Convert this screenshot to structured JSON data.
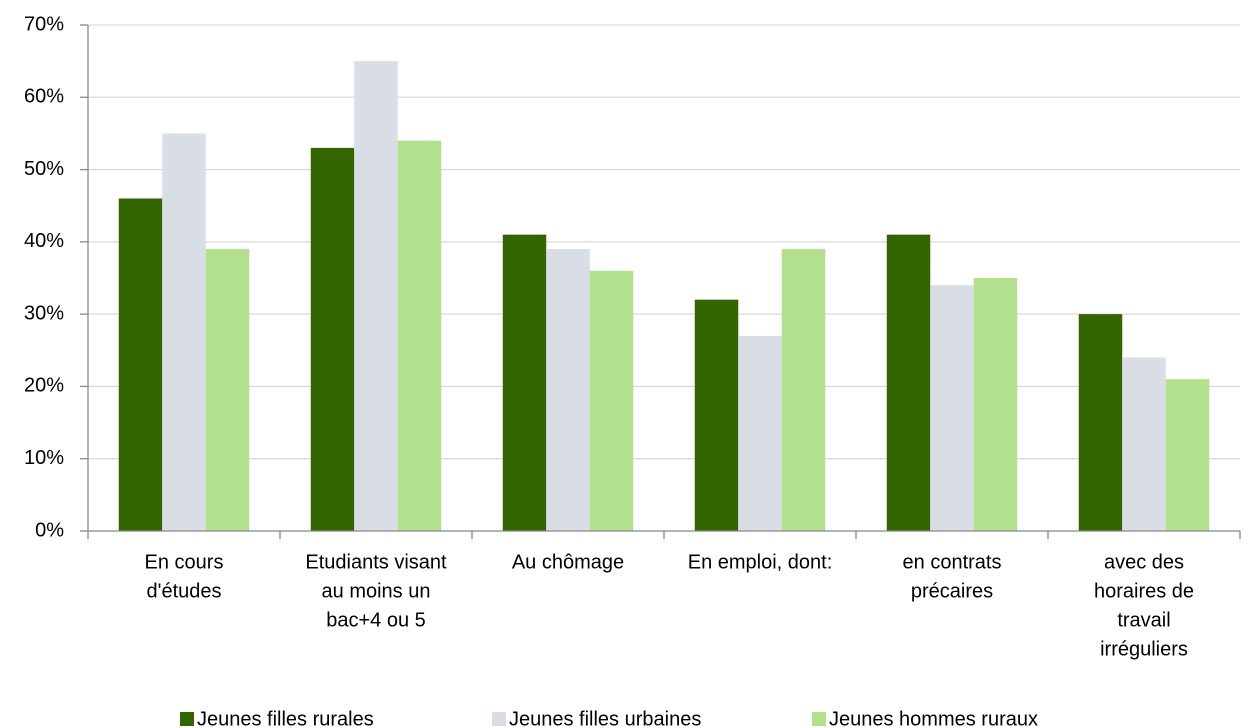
{
  "chart_data": {
    "type": "bar",
    "categories": [
      [
        "En cours",
        "d'études"
      ],
      [
        "Etudiants visant",
        "au moins un",
        "bac+4 ou 5"
      ],
      [
        "Au chômage"
      ],
      [
        "En emploi, dont:"
      ],
      [
        "en contrats",
        "précaires"
      ],
      [
        "avec des",
        "horaires de",
        "travail",
        "irréguliers"
      ]
    ],
    "series": [
      {
        "name": "Jeunes filles rurales",
        "color": "#336600",
        "values": [
          46,
          53,
          41,
          32,
          41,
          30
        ]
      },
      {
        "name": "Jeunes filles urbaines",
        "color": "#d9dde6",
        "values": [
          55,
          65,
          39,
          27,
          34,
          24
        ]
      },
      {
        "name": "Jeunes hommes ruraux",
        "color": "#b3e08c",
        "values": [
          39,
          54,
          36,
          39,
          35,
          21
        ]
      }
    ],
    "ylim": [
      0,
      70
    ],
    "yticks": [
      {
        "value": 0,
        "label": "0%"
      },
      {
        "value": 10,
        "label": "10%"
      },
      {
        "value": 20,
        "label": "20%"
      },
      {
        "value": 30,
        "label": "30%"
      },
      {
        "value": 40,
        "label": "40%"
      },
      {
        "value": 50,
        "label": "50%"
      },
      {
        "value": 60,
        "label": "60%"
      },
      {
        "value": 70,
        "label": "70%"
      }
    ],
    "grid": true,
    "legend": "bottom"
  }
}
